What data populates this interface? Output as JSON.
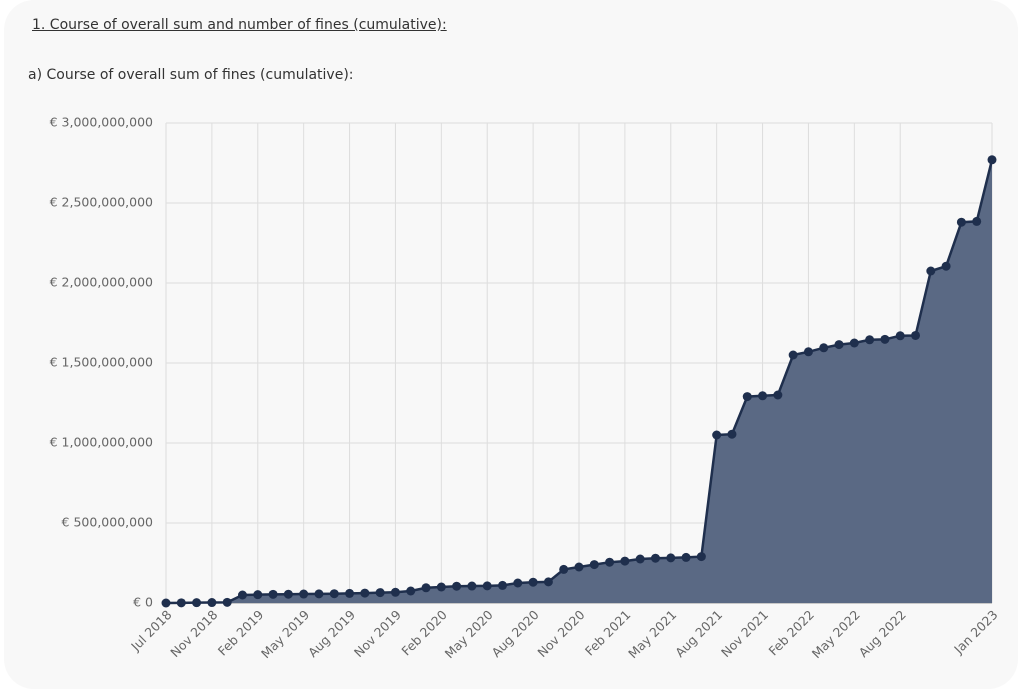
{
  "page": {
    "heading": "1. Course of overall sum and number of fines (cumulative):"
  },
  "chart_data": {
    "type": "area",
    "title": "a) Course of overall sum of fines (cumulative):",
    "categories": [
      "Jul 2018",
      null,
      null,
      "Nov 2018",
      null,
      null,
      "Feb 2019",
      null,
      null,
      "May 2019",
      null,
      null,
      "Aug 2019",
      null,
      null,
      "Nov 2019",
      null,
      null,
      "Feb 2020",
      null,
      null,
      "May 2020",
      null,
      null,
      "Aug 2020",
      null,
      null,
      "Nov 2020",
      null,
      null,
      "Feb 2021",
      null,
      null,
      "May 2021",
      null,
      null,
      "Aug 2021",
      null,
      null,
      "Nov 2021",
      null,
      null,
      "Feb 2022",
      null,
      null,
      "May 2022",
      null,
      null,
      "Aug 2022",
      null,
      null,
      null,
      null,
      null,
      "Jan 2023"
    ],
    "values": [
      0,
      1000000,
      2000000,
      3000000,
      4000000,
      50000000,
      52000000,
      54000000,
      55000000,
      56000000,
      57000000,
      58000000,
      60000000,
      62000000,
      65000000,
      67000000,
      75000000,
      95000000,
      100000000,
      105000000,
      106000000,
      107000000,
      110000000,
      125000000,
      130000000,
      132000000,
      210000000,
      225000000,
      240000000,
      255000000,
      262000000,
      275000000,
      280000000,
      282000000,
      285000000,
      290000000,
      1050000000,
      1055000000,
      1290000000,
      1295000000,
      1300000000,
      1550000000,
      1570000000,
      1595000000,
      1615000000,
      1625000000,
      1645000000,
      1648000000,
      1670000000,
      1672000000,
      2075000000,
      2105000000,
      2380000000,
      2385000000,
      2770000000
    ],
    "line_color": "#1f2f4d",
    "fill_color": "#5a6984",
    "ylim": [
      0,
      3000000000
    ],
    "yticks": [
      {
        "value": 0,
        "label": "€ 0"
      },
      {
        "value": 500000000,
        "label": "€ 500,000,000"
      },
      {
        "value": 1000000000,
        "label": "€ 1,000,000,000"
      },
      {
        "value": 1500000000,
        "label": "€ 1,500,000,000"
      },
      {
        "value": 2000000000,
        "label": "€ 2,000,000,000"
      },
      {
        "value": 2500000000,
        "label": "€ 2,500,000,000"
      },
      {
        "value": 3000000000,
        "label": "€ 3,000,000,000"
      }
    ],
    "grid": true
  }
}
